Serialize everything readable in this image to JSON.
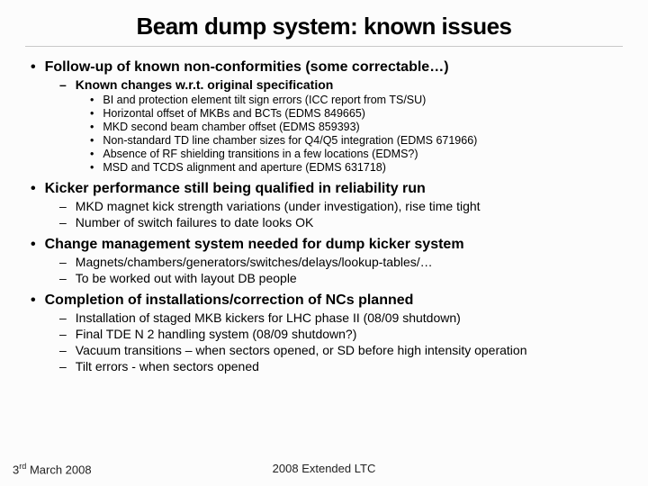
{
  "title": "Beam dump system: known issues",
  "sections": [
    {
      "heading": "Follow-up of known non-conformities (some correctable…)",
      "subs": [
        {
          "text": "Known changes w.r.t. original specification",
          "bold": true,
          "items": [
            "BI and protection element tilt sign errors (ICC report from TS/SU)",
            "Horizontal offset of MKBs and BCTs (EDMS 849665)",
            "MKD second beam chamber offset (EDMS 859393)",
            "Non-standard TD line chamber sizes for Q4/Q5 integration (EDMS 671966)",
            "Absence of RF shielding transitions in a few locations (EDMS?)",
            "MSD and TCDS alignment and aperture (EDMS 631718)"
          ]
        }
      ]
    },
    {
      "heading": "Kicker performance still being qualified in reliability run",
      "subs": [
        {
          "text": "MKD magnet kick strength variations (under investigation), rise time tight",
          "bold": false
        },
        {
          "text": "Number of switch failures to date looks OK",
          "bold": false
        }
      ]
    },
    {
      "heading": "Change management system needed for dump kicker system",
      "subs": [
        {
          "text": "Magnets/chambers/generators/switches/delays/lookup-tables/…",
          "bold": false
        },
        {
          "text": "To be worked out with layout DB people",
          "bold": false
        }
      ]
    },
    {
      "heading": "Completion of installations/correction of NCs planned",
      "subs": [
        {
          "text": "Installation of staged MKB kickers for LHC phase II (08/09 shutdown)",
          "bold": false
        },
        {
          "text": "Final TDE N 2 handling system (08/09 shutdown?)",
          "bold": false
        },
        {
          "text": "Vacuum transitions – when sectors opened, or SD before high intensity operation",
          "bold": false
        },
        {
          "text": "Tilt errors - when sectors opened",
          "bold": false
        }
      ]
    }
  ],
  "footer": {
    "left_html": "3<sup>rd</sup> March 2008",
    "center": "2008 Extended LTC"
  },
  "glyphs": {
    "bullet1": "•",
    "dash": "–",
    "bullet3": "•"
  }
}
